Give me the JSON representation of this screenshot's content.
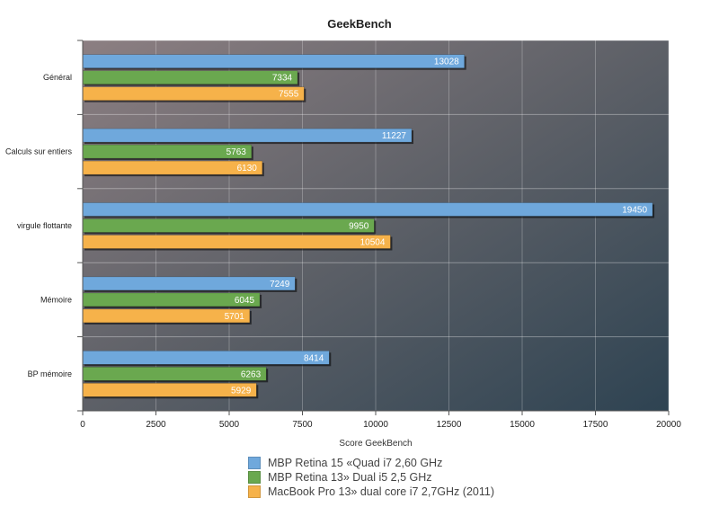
{
  "chart_data": {
    "type": "bar",
    "orientation": "horizontal",
    "title": "GeekBench",
    "xlabel": "Score GeekBench",
    "ylabel": "",
    "xlim": [
      0,
      20000
    ],
    "xticks": [
      0,
      2500,
      5000,
      7500,
      10000,
      12500,
      15000,
      17500,
      20000
    ],
    "categories": [
      "Général",
      "Calculs sur entiers",
      "virgule flottante",
      "Mémoire",
      "BP mémoire"
    ],
    "series": [
      {
        "name": "MBP Retina 15 «Quad i7 2,60 GHz",
        "color": "#6fa8dc",
        "values": [
          13028,
          11227,
          19450,
          7249,
          8414
        ]
      },
      {
        "name": "MBP Retina 13» Dual i5 2,5 GHz",
        "color": "#6aa84f",
        "values": [
          7334,
          5763,
          9950,
          6045,
          6263
        ]
      },
      {
        "name": "MacBook Pro 13» dual core i7 2,7GHz (2011)",
        "color": "#f6b24a",
        "values": [
          7555,
          6130,
          10504,
          5701,
          5929
        ]
      }
    ],
    "grid": true,
    "legend_position": "bottom"
  }
}
